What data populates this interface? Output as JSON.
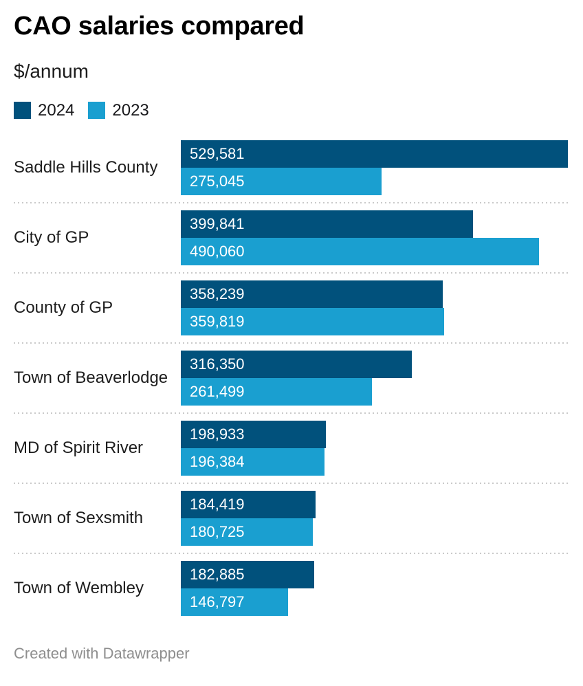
{
  "header": {
    "title": "CAO salaries compared",
    "subtitle": "$/annum"
  },
  "legend": [
    {
      "label": "2024",
      "color": "#01517c"
    },
    {
      "label": "2023",
      "color": "#1a9fd0"
    }
  ],
  "footer": {
    "credit": "Created with Datawrapper"
  },
  "chart_data": {
    "type": "bar",
    "orientation": "horizontal",
    "title": "CAO salaries compared",
    "unit_label": "$/annum",
    "legend_position": "top-left",
    "grid": false,
    "xlim": [
      0,
      529581
    ],
    "categories": [
      "Saddle Hills County",
      "City of GP",
      "County of GP",
      "Town of Beaverlodge",
      "MD of Spirit River",
      "Town of Sexsmith",
      "Town of Wembley"
    ],
    "series": [
      {
        "name": "2024",
        "color": "#01517c",
        "values": [
          529581,
          399841,
          358239,
          316350,
          198933,
          184419,
          182885
        ]
      },
      {
        "name": "2023",
        "color": "#1a9fd0",
        "values": [
          275045,
          490060,
          359819,
          261499,
          196384,
          180725,
          146797
        ]
      }
    ],
    "value_label_format": "#,###",
    "credit": "Created with Datawrapper"
  }
}
